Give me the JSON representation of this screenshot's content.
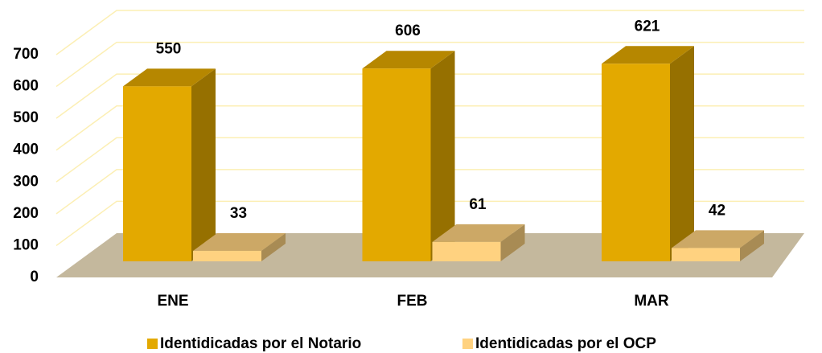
{
  "chart_data": {
    "type": "bar3d",
    "categories": [
      "ENE",
      "FEB",
      "MAR"
    ],
    "series": [
      {
        "name": "Identidicadas por el Notario",
        "color": "#E3A900",
        "values": [
          550,
          606,
          621
        ]
      },
      {
        "name": "Identidicadas por el OCP",
        "color": "#FFD280",
        "values": [
          33,
          61,
          42
        ]
      }
    ],
    "ylim": [
      0,
      700
    ],
    "yticks": [
      0,
      100,
      200,
      300,
      400,
      500,
      600,
      700
    ],
    "grid": true,
    "legend": "bottom"
  }
}
